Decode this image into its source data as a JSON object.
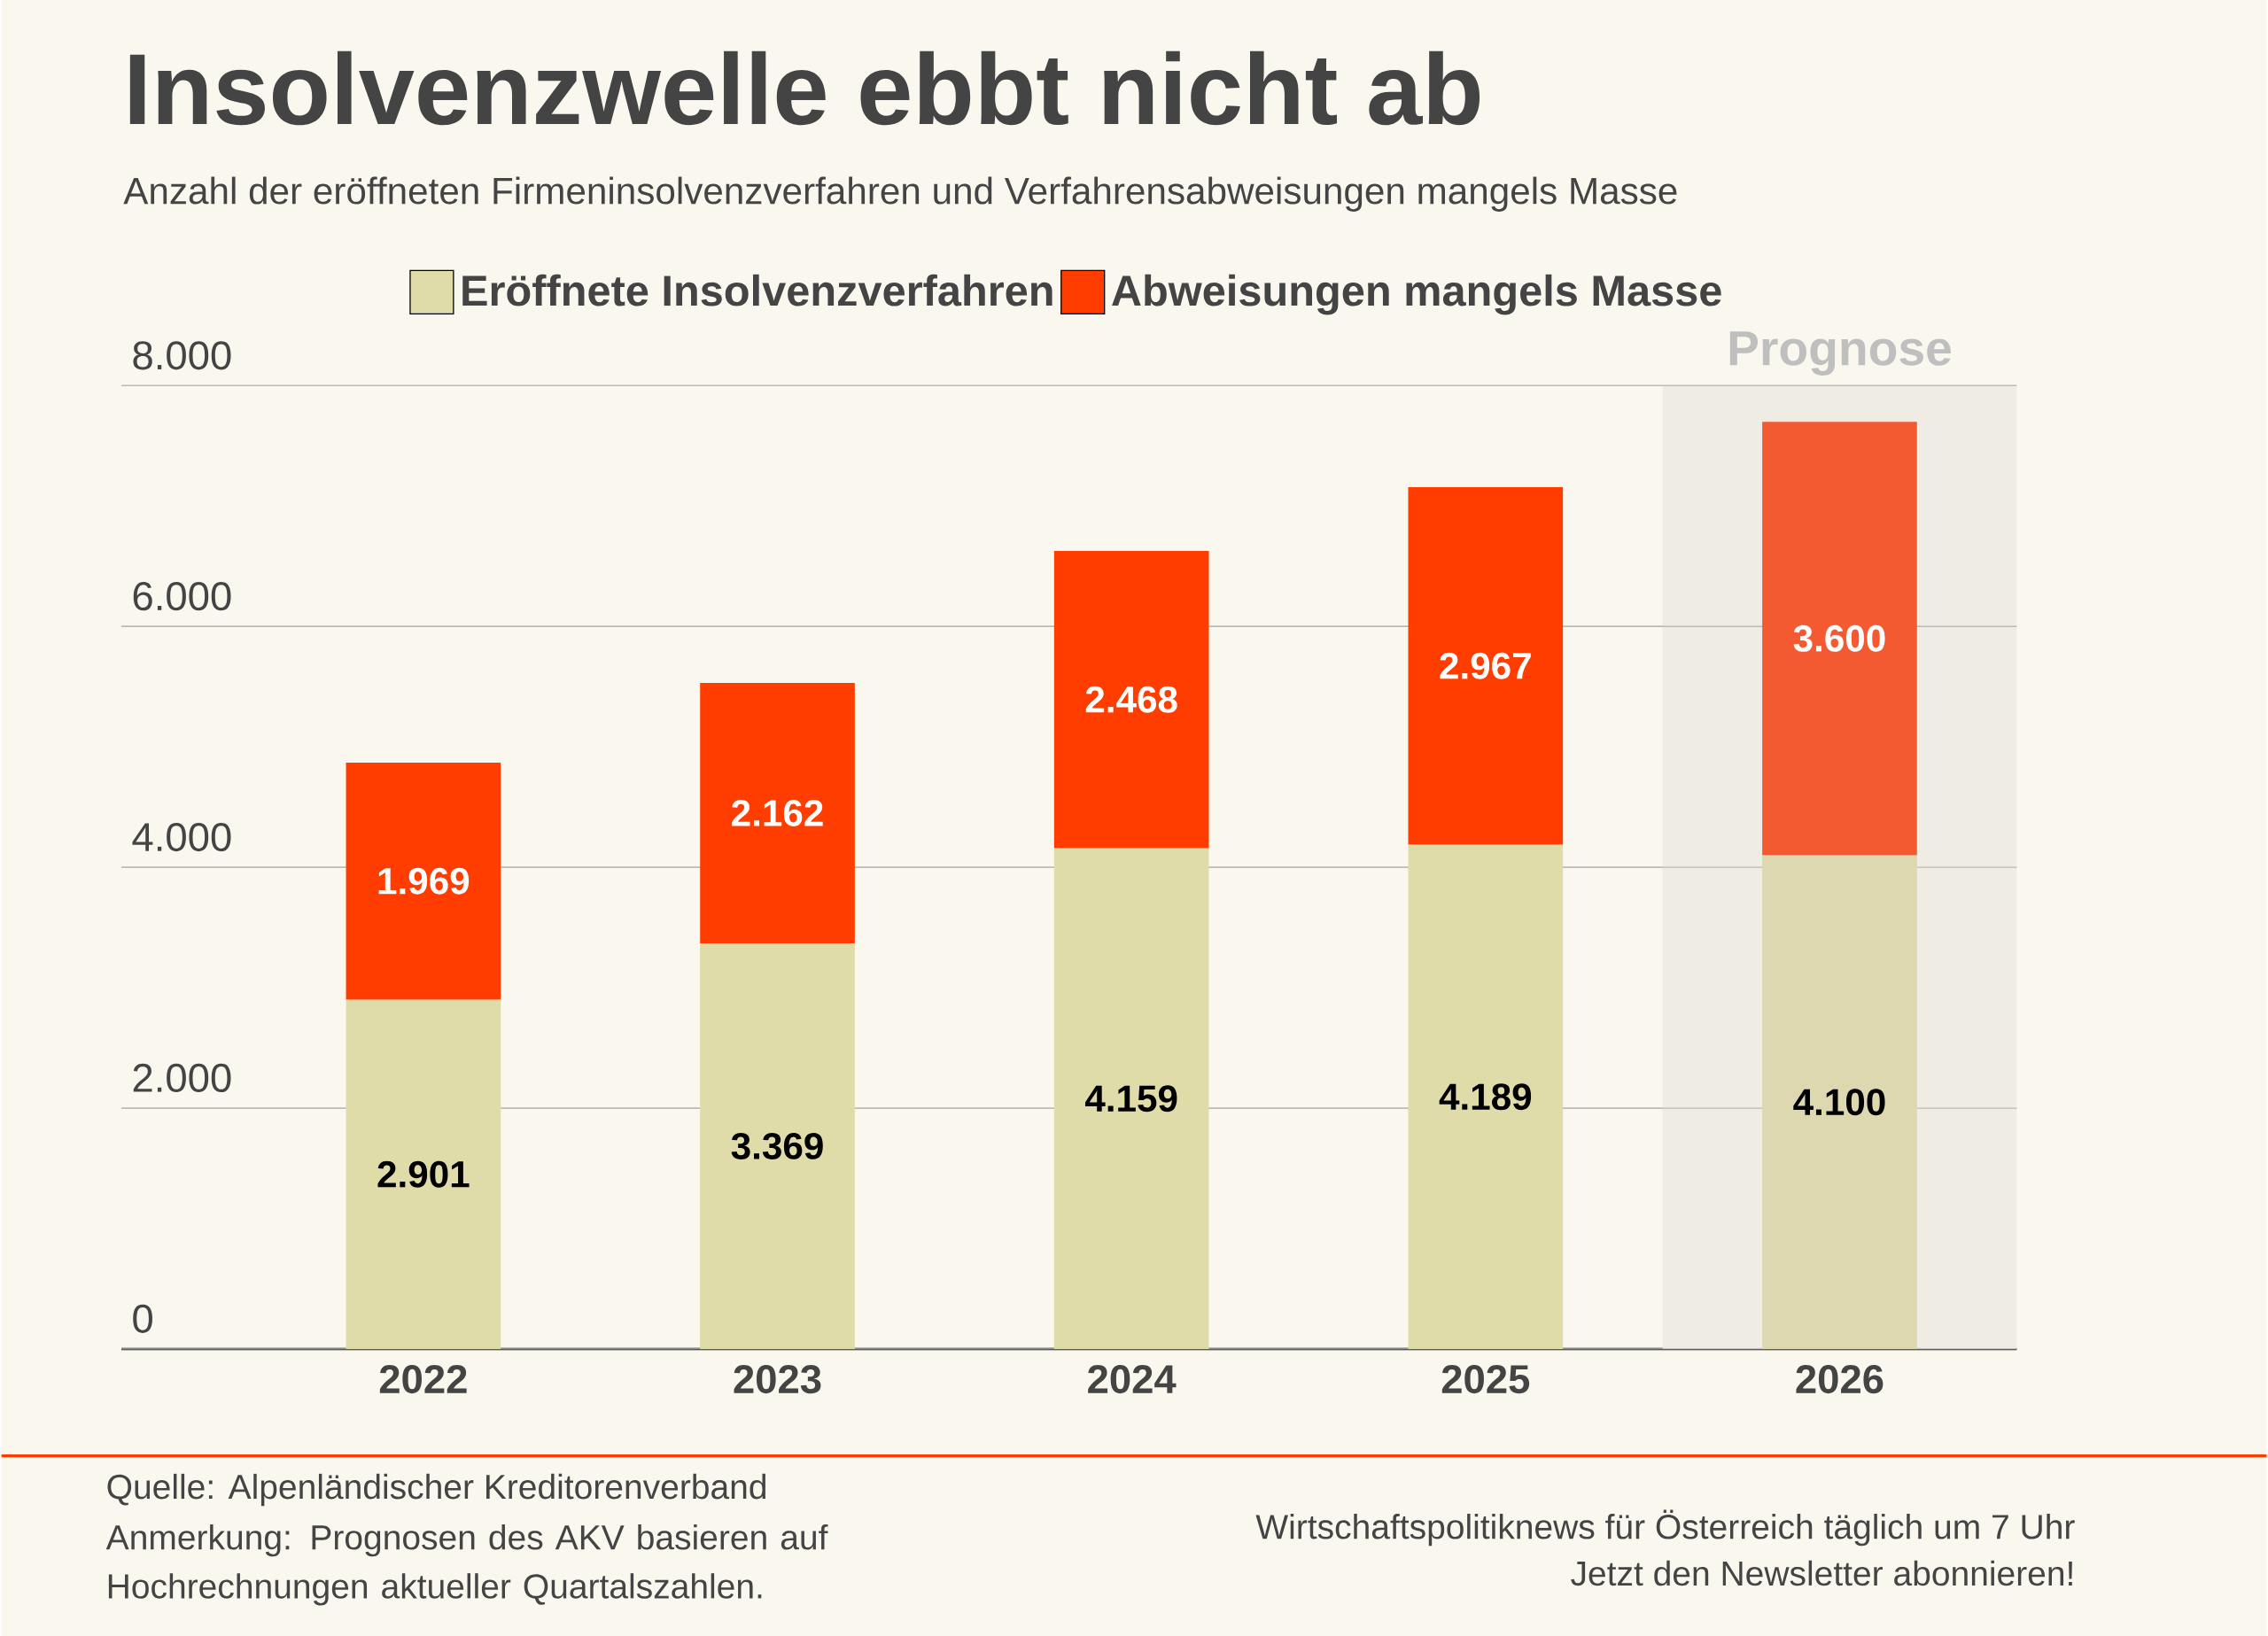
{
  "chart_data": {
    "type": "bar",
    "stacked": true,
    "title": "Insolvenzwelle ebbt nicht ab",
    "subtitle": "Anzahl der eröffneten Firmeninsolvenzverfahren und Verfahrensabweisungen mangels Masse",
    "categories": [
      "2022",
      "2023",
      "2024",
      "2025",
      "2026"
    ],
    "series": [
      {
        "name": "Eröffnete Insolvenzverfahren",
        "color": "#dfdcaa",
        "colors": [
          "#dfdcaa",
          "#dfdcaa",
          "#dfdcaa",
          "#dfdcaa",
          "#ddd8b0"
        ],
        "values": [
          2901,
          3369,
          4159,
          4189,
          4100
        ],
        "value_labels": [
          "2.901",
          "3.369",
          "4.159",
          "4.189",
          "4.100"
        ]
      },
      {
        "name": "Abweisungen mangels Masse",
        "color": "#ff3d00",
        "colors": [
          "#ff3d00",
          "#ff3d00",
          "#ff3d00",
          "#ff3d00",
          "#f45a32"
        ],
        "values": [
          1969,
          2162,
          2468,
          2967,
          3600
        ],
        "value_labels": [
          "1.969",
          "2.162",
          "2.468",
          "2.967",
          "3.600"
        ]
      }
    ],
    "ylim": [
      0,
      8000
    ],
    "yticks": [
      {
        "value": 0,
        "label": "0"
      },
      {
        "value": 2000,
        "label": "2.000"
      },
      {
        "value": 4000,
        "label": "4.000"
      },
      {
        "value": 6000,
        "label": "6.000"
      },
      {
        "value": 8000,
        "label": "8.000"
      }
    ],
    "grid": "y",
    "legend": "top",
    "bands": [
      {
        "axis": "x",
        "from": "2026",
        "to": "2026",
        "label": "Prognose",
        "color": "#efece4"
      }
    ],
    "annotations": [
      "Quelle: Alpenländischer Kreditorenverband",
      "Anmerkung: Prognosen des AKV basieren auf Hochrechnungen aktueller Quartalszahlen.",
      "Wirtschaftspolitiknews für Österreich täglich um 7 Uhr",
      "Jetzt den Newsletter abonnieren!"
    ]
  }
}
